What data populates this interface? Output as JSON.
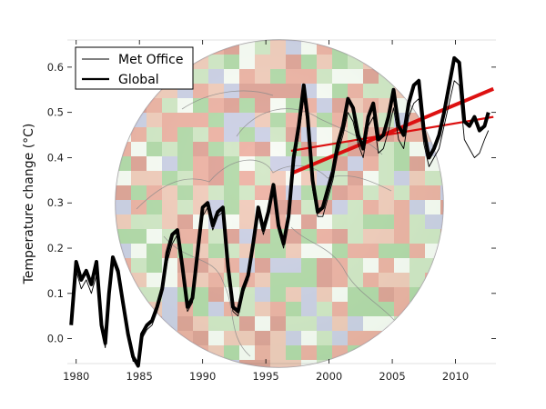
{
  "chart_data": {
    "type": "line",
    "title": "",
    "xlabel": "",
    "ylabel": "Temperature change (°C)",
    "xlim": [
      1979.3,
      2013.2
    ],
    "ylim": [
      -0.055,
      0.66
    ],
    "xticks": [
      "1980",
      "1985",
      "1990",
      "1995",
      "2000",
      "2005",
      "2010"
    ],
    "yticks": [
      "0.0",
      "0.1",
      "0.2",
      "0.3",
      "0.4",
      "0.5",
      "0.6"
    ],
    "grid": false,
    "legend": {
      "position": "top-left",
      "entries": [
        "Met Office",
        "Global"
      ]
    },
    "background_image": "globe-temperature-anomaly-map",
    "series": [
      {
        "name": "Met Office",
        "color": "#000000",
        "line_width": "thin",
        "x": [
          1979.6,
          1980.0,
          1980.4,
          1980.8,
          1981.2,
          1981.6,
          1982.0,
          1982.3,
          1982.6,
          1982.9,
          1983.3,
          1983.7,
          1984.1,
          1984.5,
          1984.9,
          1985.2,
          1985.6,
          1986.0,
          1986.4,
          1986.8,
          1987.2,
          1987.6,
          1988.0,
          1988.4,
          1988.8,
          1989.2,
          1989.6,
          1990.0,
          1990.4,
          1990.8,
          1991.2,
          1991.6,
          1992.0,
          1992.4,
          1992.8,
          1993.2,
          1993.6,
          1994.0,
          1994.4,
          1994.8,
          1995.2,
          1995.6,
          1996.0,
          1996.4,
          1996.8,
          1997.2,
          1997.6,
          1998.0,
          1998.3,
          1998.7,
          1999.1,
          1999.5,
          1999.9,
          2000.3,
          2000.7,
          2001.1,
          2001.5,
          2001.9,
          2002.3,
          2002.7,
          2003.1,
          2003.5,
          2003.9,
          2004.3,
          2004.7,
          2005.1,
          2005.5,
          2005.9,
          2006.3,
          2006.7,
          2007.1,
          2007.5,
          2007.9,
          2008.3,
          2008.7,
          2009.1,
          2009.5,
          2009.9,
          2010.3,
          2010.7,
          2011.1,
          2011.5,
          2011.9,
          2012.3,
          2012.6
        ],
        "y": [
          0.05,
          0.15,
          0.11,
          0.13,
          0.1,
          0.14,
          0.02,
          -0.02,
          0.08,
          0.17,
          0.14,
          0.07,
          0.0,
          -0.05,
          -0.05,
          0.0,
          0.02,
          0.03,
          0.06,
          0.1,
          0.17,
          0.21,
          0.23,
          0.15,
          0.06,
          0.08,
          0.18,
          0.27,
          0.29,
          0.24,
          0.27,
          0.28,
          0.15,
          0.06,
          0.05,
          0.1,
          0.13,
          0.2,
          0.28,
          0.23,
          0.27,
          0.33,
          0.24,
          0.2,
          0.26,
          0.38,
          0.45,
          0.53,
          0.47,
          0.33,
          0.27,
          0.27,
          0.31,
          0.35,
          0.41,
          0.45,
          0.5,
          0.48,
          0.43,
          0.4,
          0.47,
          0.49,
          0.41,
          0.42,
          0.46,
          0.51,
          0.44,
          0.42,
          0.49,
          0.52,
          0.53,
          0.43,
          0.38,
          0.4,
          0.42,
          0.47,
          0.52,
          0.57,
          0.56,
          0.44,
          0.42,
          0.4,
          0.41,
          0.44,
          0.46
        ]
      },
      {
        "name": "Global",
        "color": "#000000",
        "line_width": "thick",
        "x": [
          1979.6,
          1980.0,
          1980.4,
          1980.8,
          1981.2,
          1981.6,
          1982.0,
          1982.3,
          1982.6,
          1982.9,
          1983.3,
          1983.7,
          1984.1,
          1984.5,
          1984.9,
          1985.2,
          1985.6,
          1986.0,
          1986.4,
          1986.8,
          1987.2,
          1987.6,
          1988.0,
          1988.4,
          1988.8,
          1989.2,
          1989.6,
          1990.0,
          1990.4,
          1990.8,
          1991.2,
          1991.6,
          1992.0,
          1992.4,
          1992.8,
          1993.2,
          1993.6,
          1994.0,
          1994.4,
          1994.8,
          1995.2,
          1995.6,
          1996.0,
          1996.4,
          1996.8,
          1997.2,
          1997.6,
          1998.0,
          1998.3,
          1998.7,
          1999.1,
          1999.5,
          1999.9,
          2000.3,
          2000.7,
          2001.1,
          2001.5,
          2001.9,
          2002.3,
          2002.7,
          2003.1,
          2003.5,
          2003.9,
          2004.3,
          2004.7,
          2005.1,
          2005.5,
          2005.9,
          2006.3,
          2006.7,
          2007.1,
          2007.5,
          2007.9,
          2008.3,
          2008.7,
          2009.1,
          2009.5,
          2009.9,
          2010.3,
          2010.7,
          2011.1,
          2011.5,
          2011.9,
          2012.3,
          2012.6
        ],
        "y": [
          0.03,
          0.17,
          0.13,
          0.15,
          0.12,
          0.17,
          0.03,
          -0.01,
          0.1,
          0.18,
          0.15,
          0.08,
          0.01,
          -0.04,
          -0.06,
          0.01,
          0.03,
          0.04,
          0.07,
          0.11,
          0.19,
          0.23,
          0.24,
          0.16,
          0.07,
          0.09,
          0.19,
          0.29,
          0.3,
          0.25,
          0.28,
          0.29,
          0.16,
          0.07,
          0.06,
          0.11,
          0.14,
          0.21,
          0.29,
          0.24,
          0.28,
          0.34,
          0.25,
          0.21,
          0.27,
          0.4,
          0.47,
          0.56,
          0.49,
          0.35,
          0.28,
          0.29,
          0.33,
          0.37,
          0.43,
          0.47,
          0.53,
          0.51,
          0.45,
          0.42,
          0.49,
          0.52,
          0.44,
          0.45,
          0.49,
          0.55,
          0.47,
          0.45,
          0.52,
          0.56,
          0.57,
          0.46,
          0.4,
          0.42,
          0.45,
          0.5,
          0.56,
          0.62,
          0.61,
          0.48,
          0.47,
          0.49,
          0.46,
          0.47,
          0.5
        ]
      }
    ],
    "trend_lines": [
      {
        "color": "#dd1111",
        "line_width": "thick",
        "x": [
          1997.0,
          2013.0
        ],
        "y": [
          0.365,
          0.552
        ]
      },
      {
        "color": "#dd1111",
        "line_width": "medium",
        "x": [
          1997.0,
          2013.0
        ],
        "y": [
          0.415,
          0.49
        ]
      }
    ]
  }
}
